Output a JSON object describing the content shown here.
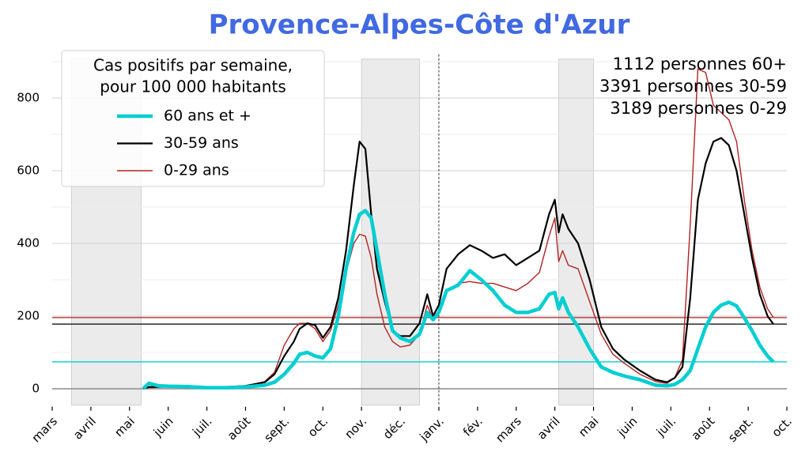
{
  "chart_data": {
    "type": "line",
    "title": "Provence-Alpes-Côte d'Azur",
    "legend_title": [
      "Cas positifs par semaine,",
      "pour 100 000 habitants"
    ],
    "legend": "upper left",
    "annotations": [
      "1112 personnes 60+",
      "3391 personnes 30-59",
      "3189 personnes 0-29"
    ],
    "x": [
      2.35,
      2.5,
      2.75,
      3.0,
      3.5,
      4.0,
      4.5,
      5.0,
      5.5,
      5.75,
      6.0,
      6.25,
      6.4,
      6.6,
      6.8,
      7.0,
      7.2,
      7.4,
      7.6,
      7.8,
      7.95,
      8.1,
      8.25,
      8.4,
      8.6,
      8.8,
      9.0,
      9.25,
      9.5,
      9.7,
      9.85,
      10.0,
      10.2,
      10.5,
      10.8,
      11.1,
      11.4,
      11.7,
      12.0,
      12.3,
      12.6,
      12.85,
      13.0,
      13.1,
      13.2,
      13.35,
      13.6,
      13.9,
      14.2,
      14.5,
      14.8,
      15.2,
      15.6,
      15.9,
      16.1,
      16.3,
      16.5,
      16.7,
      16.9,
      17.1,
      17.3,
      17.5,
      17.7,
      17.9,
      18.1,
      18.3,
      18.5,
      18.65
    ],
    "series": [
      {
        "name": "60 ans et +",
        "color": "#00ced1",
        "linewidth": 4.5,
        "values": [
          0,
          15,
          8,
          7,
          6,
          3,
          3,
          5,
          10,
          18,
          40,
          70,
          95,
          100,
          90,
          85,
          110,
          200,
          330,
          430,
          480,
          490,
          470,
          380,
          260,
          160,
          140,
          130,
          150,
          210,
          190,
          210,
          270,
          285,
          325,
          300,
          270,
          230,
          210,
          210,
          220,
          260,
          265,
          220,
          250,
          210,
          170,
          110,
          60,
          45,
          35,
          25,
          10,
          8,
          12,
          25,
          50,
          110,
          170,
          210,
          230,
          238,
          228,
          195,
          160,
          120,
          90,
          74
        ]
      },
      {
        "name": "30-59 ans",
        "color": "#000000",
        "linewidth": 2.2,
        "values": [
          0,
          5,
          5,
          7,
          8,
          4,
          5,
          8,
          18,
          40,
          90,
          130,
          165,
          180,
          175,
          140,
          170,
          250,
          380,
          560,
          680,
          660,
          480,
          330,
          240,
          160,
          145,
          145,
          180,
          260,
          200,
          230,
          330,
          370,
          395,
          380,
          360,
          370,
          340,
          360,
          380,
          480,
          520,
          430,
          480,
          440,
          400,
          300,
          170,
          110,
          80,
          50,
          25,
          18,
          30,
          60,
          250,
          520,
          620,
          680,
          690,
          670,
          600,
          480,
          360,
          260,
          200,
          178
        ]
      },
      {
        "name": "0-29 ans",
        "color": "#b22222",
        "linewidth": 1.4,
        "values": [
          0,
          3,
          4,
          5,
          5,
          3,
          4,
          7,
          20,
          45,
          120,
          165,
          180,
          180,
          165,
          130,
          160,
          230,
          320,
          400,
          425,
          420,
          360,
          260,
          170,
          130,
          115,
          120,
          150,
          230,
          190,
          210,
          270,
          290,
          295,
          290,
          290,
          280,
          270,
          290,
          320,
          420,
          470,
          350,
          380,
          340,
          330,
          240,
          150,
          95,
          70,
          40,
          20,
          15,
          30,
          80,
          450,
          880,
          870,
          780,
          760,
          740,
          680,
          520,
          380,
          280,
          220,
          196
        ]
      }
    ],
    "hlines": [
      {
        "value": 74,
        "color": "#00ced1"
      },
      {
        "value": 178,
        "color": "#000000"
      },
      {
        "value": 196,
        "color": "#b22222"
      }
    ],
    "shaded": [
      [
        0.5,
        2.3
      ],
      [
        8.0,
        9.5
      ],
      [
        13.1,
        14.0
      ]
    ],
    "vline": 10,
    "xlim": [
      0,
      19
    ],
    "xticks": [
      {
        "value": 0,
        "label": "mars"
      },
      {
        "value": 1,
        "label": "avril"
      },
      {
        "value": 2,
        "label": "mai"
      },
      {
        "value": 3,
        "label": "juin"
      },
      {
        "value": 4,
        "label": "juil."
      },
      {
        "value": 5,
        "label": "août"
      },
      {
        "value": 6,
        "label": "sept."
      },
      {
        "value": 7,
        "label": "oct."
      },
      {
        "value": 8,
        "label": "nov."
      },
      {
        "value": 9,
        "label": "déc."
      },
      {
        "value": 10,
        "label": "janv."
      },
      {
        "value": 11,
        "label": "fév."
      },
      {
        "value": 12,
        "label": "mars"
      },
      {
        "value": 13,
        "label": "avril"
      },
      {
        "value": 14,
        "label": "mai"
      },
      {
        "value": 15,
        "label": "juin"
      },
      {
        "value": 16,
        "label": "juil."
      },
      {
        "value": 17,
        "label": "août"
      },
      {
        "value": 18,
        "label": "sept."
      },
      {
        "value": 19,
        "label": "oct."
      }
    ],
    "ylim": [
      -45,
      920
    ],
    "yticks": [
      0,
      200,
      400,
      600,
      800
    ],
    "yminor": [
      100,
      300,
      500,
      700,
      900
    ],
    "grid": true
  }
}
